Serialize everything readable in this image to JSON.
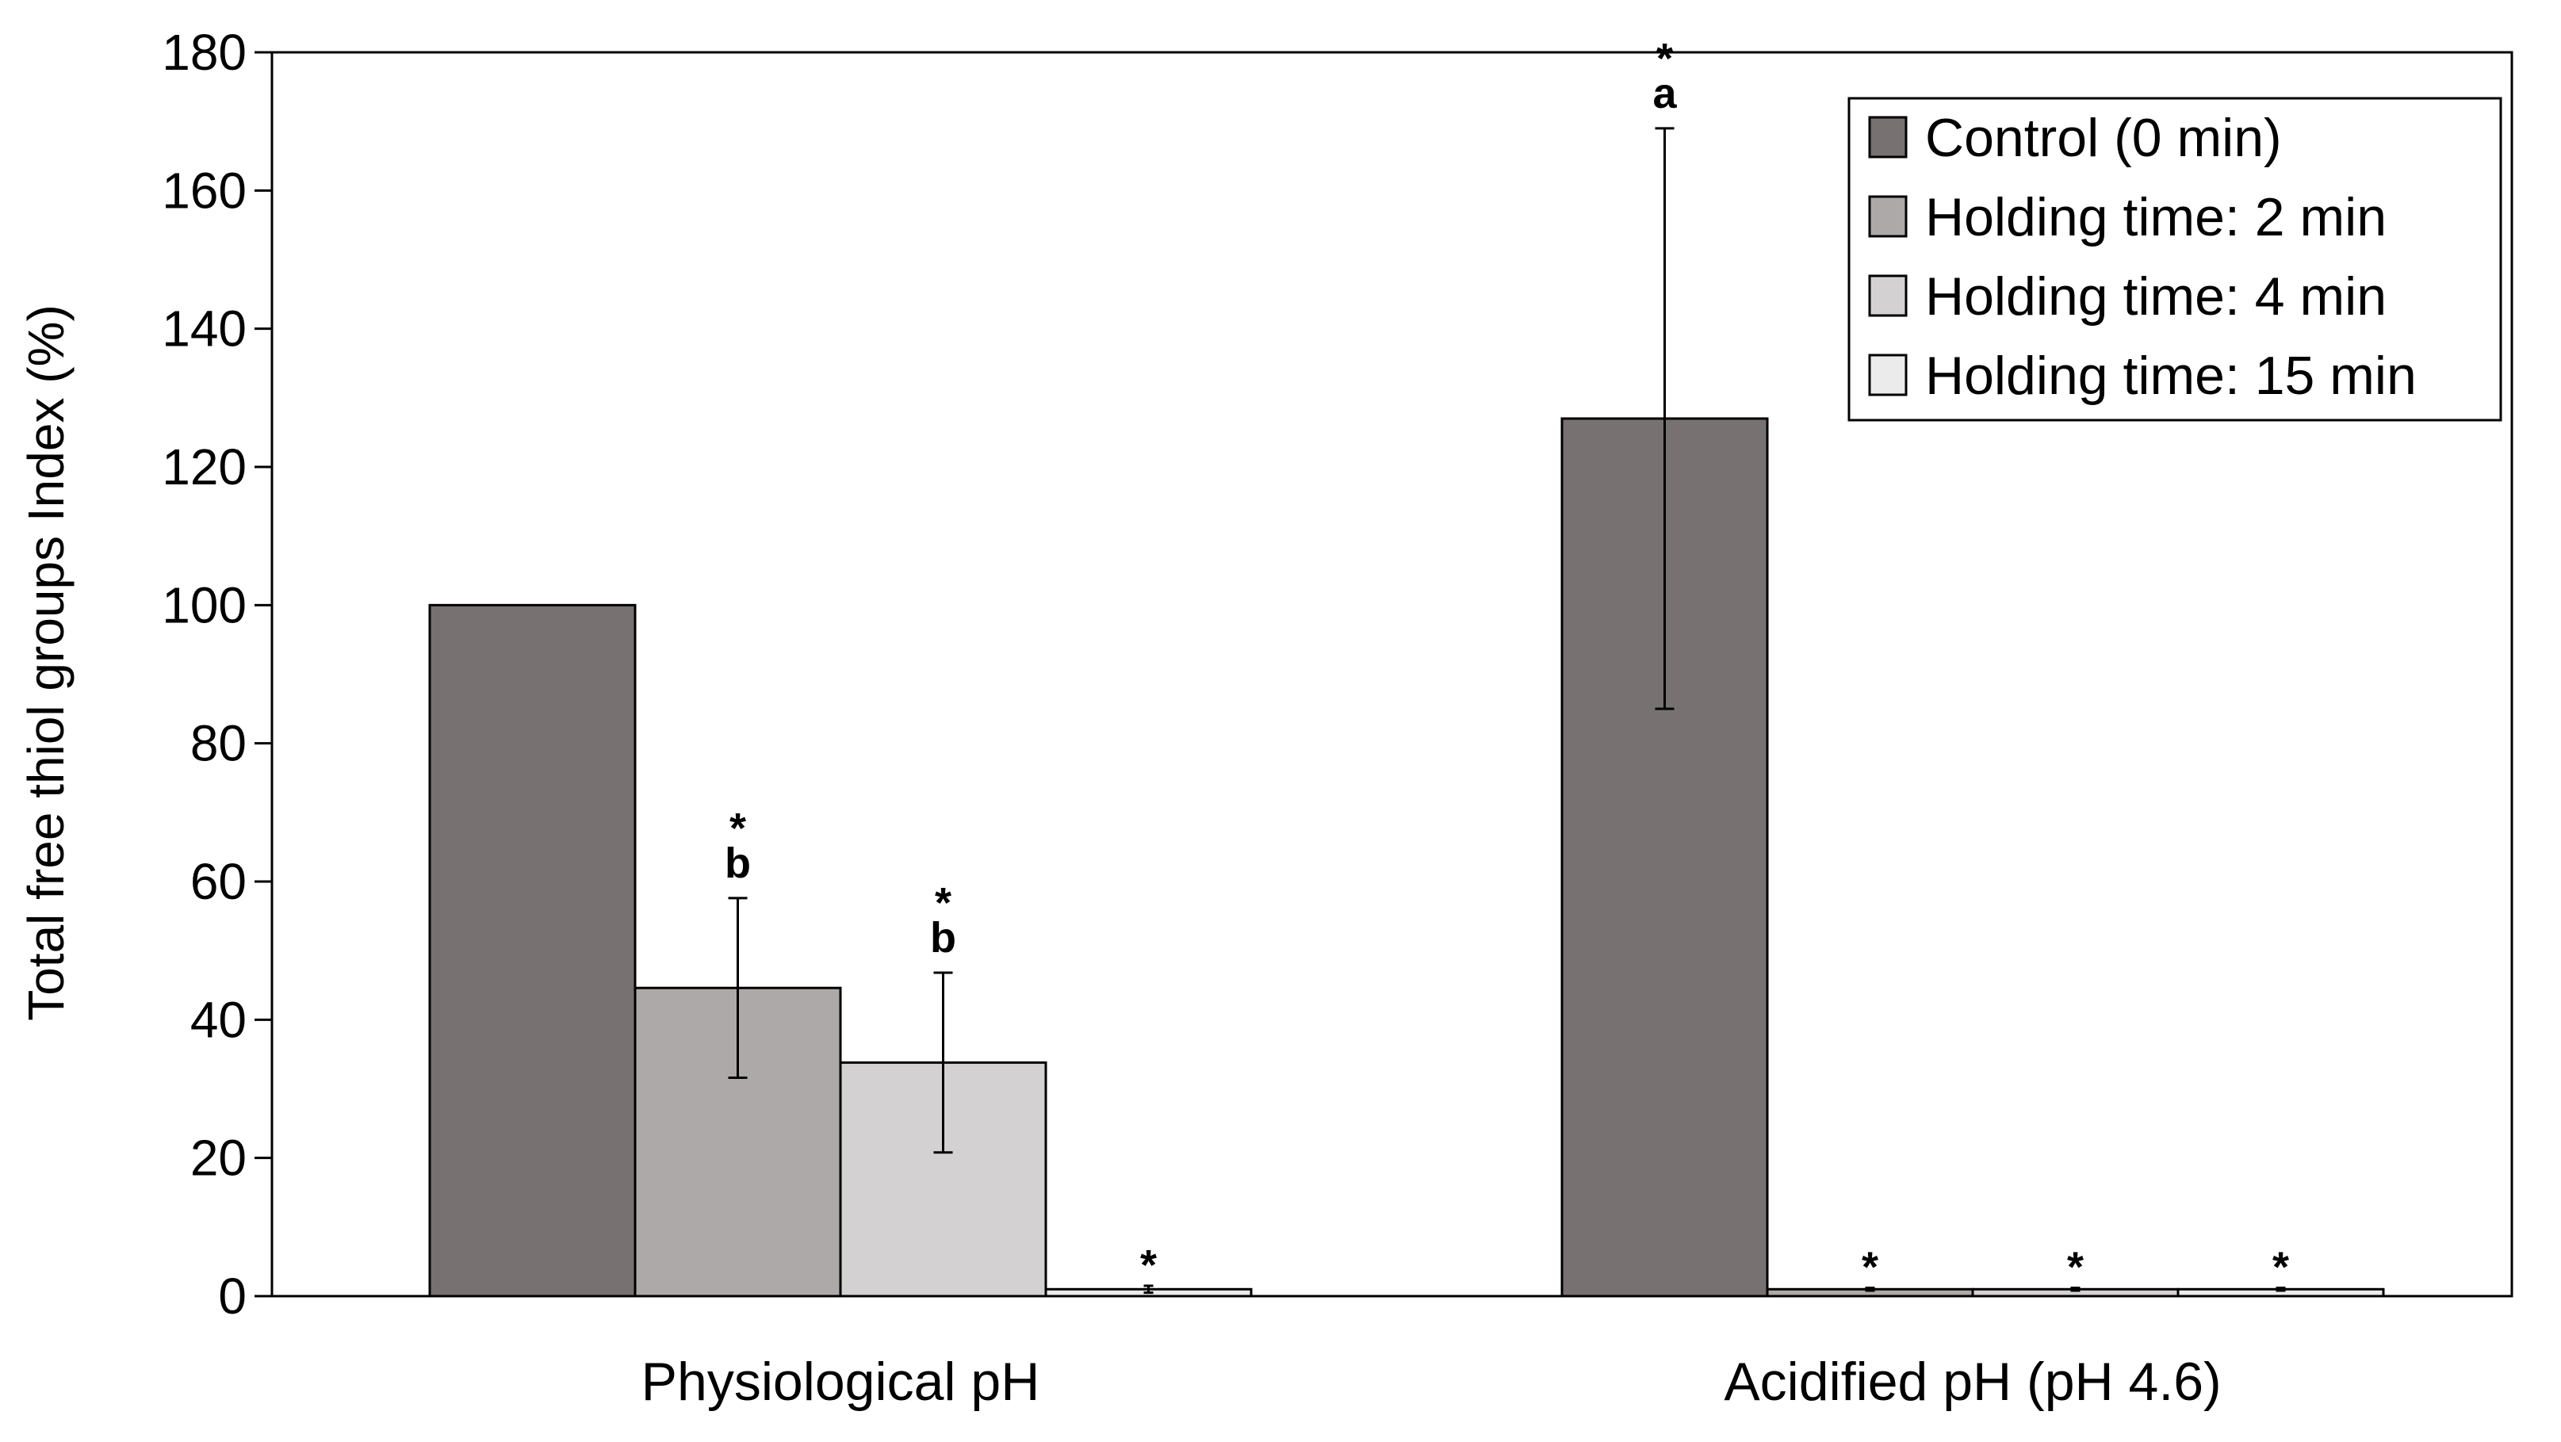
{
  "chart_data": {
    "type": "bar",
    "title": "",
    "xlabel": "",
    "ylabel": "Total free thiol groups Index (%)",
    "ylim": [
      0,
      180
    ],
    "yticks": [
      0,
      20,
      40,
      60,
      80,
      100,
      120,
      140,
      160,
      180
    ],
    "categories": [
      "Physiological pH",
      "Acidified pH (pH 4.6)"
    ],
    "series": [
      {
        "name": "Control (0 min)",
        "color": "#777171",
        "values": [
          100,
          127
        ],
        "errors": [
          0,
          42
        ],
        "annotations": [
          "",
          "*\na"
        ]
      },
      {
        "name": "Holding time: 2 min",
        "color": "#ADA9A8",
        "values": [
          44.6,
          1
        ],
        "errors": [
          13,
          0.2
        ],
        "annotations": [
          "*\nb",
          "*"
        ]
      },
      {
        "name": "Holding time: 4 min",
        "color": "#D3D1D2",
        "values": [
          33.8,
          1
        ],
        "errors": [
          13,
          0.2
        ],
        "annotations": [
          "*\nb",
          "*"
        ]
      },
      {
        "name": "Holding time: 15 min",
        "color": "#EBEBEB",
        "values": [
          1,
          1
        ],
        "errors": [
          0.5,
          0.2
        ],
        "annotations": [
          "*",
          "*"
        ]
      }
    ],
    "legend": "top-right",
    "grid": false
  }
}
